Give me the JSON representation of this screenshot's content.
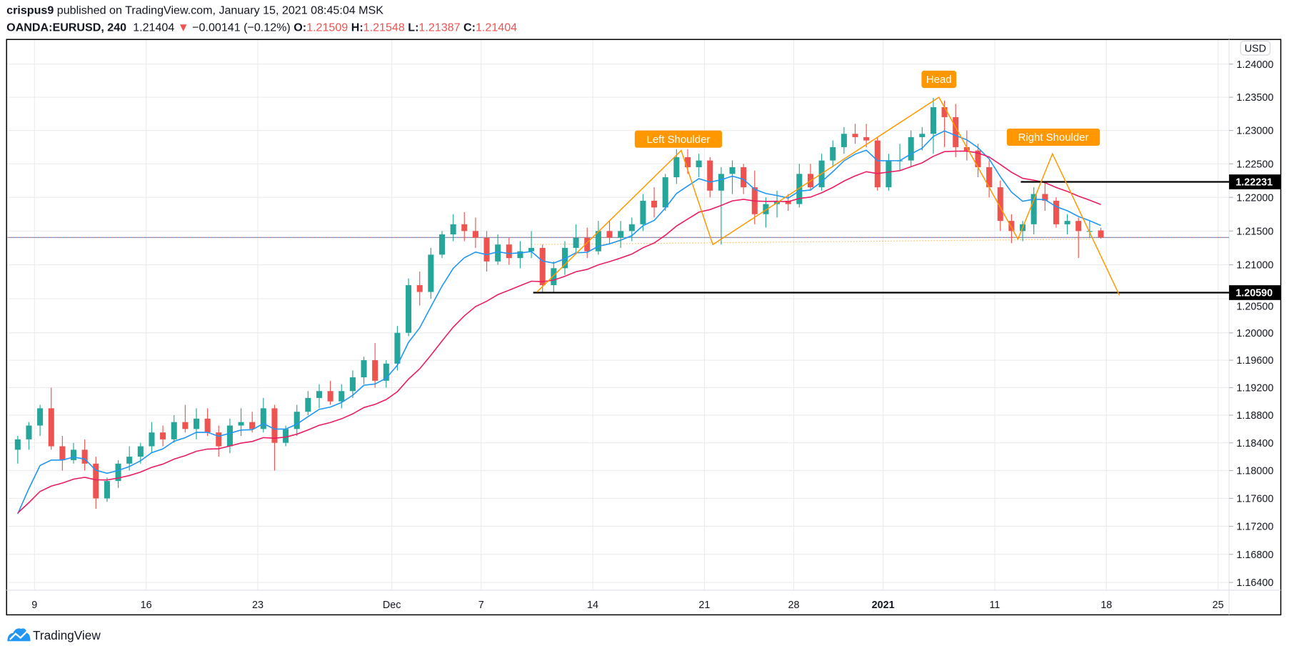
{
  "header": {
    "author": "crispus9",
    "published_text": " published on TradingView.com, January 15, 2021 08:45:04 MSK",
    "symbol": "OANDA:EURUSD, 240",
    "last": "1.21404",
    "direction_icon": "triangle-down-icon",
    "change": "−0.00141 (−0.12%)",
    "o_label": "O:",
    "o": "1.21509",
    "h_label": "H:",
    "h": "1.21548",
    "l_label": "L:",
    "l": "1.21387",
    "c_label": "C:",
    "c": "1.21404"
  },
  "footer": {
    "brand": "TradingView",
    "logo_icon": "tradingview-cloud-icon"
  },
  "colors": {
    "up": "#26a69a",
    "down": "#ef5350",
    "ma_fast": "#2196f3",
    "ma_slow": "#e91e63",
    "pattern": "#ff9800",
    "level": "#000000",
    "grid": "#ececec"
  },
  "chart_data": {
    "type": "candlestick",
    "currency": "USD",
    "log_scale": true,
    "grid": true,
    "ylim": [
      1.1625,
      1.2425
    ],
    "y_ticks": [
      "1.24000",
      "1.23500",
      "1.23000",
      "1.22500",
      "1.22000",
      "1.21500",
      "1.21000",
      "1.20500",
      "1.20000",
      "1.19600",
      "1.19200",
      "1.18800",
      "1.18400",
      "1.18000",
      "1.17600",
      "1.17200",
      "1.16800",
      "1.16400"
    ],
    "x_ticks": [
      {
        "date": "2020-11-09",
        "label": "9"
      },
      {
        "date": "2020-11-16",
        "label": "16"
      },
      {
        "date": "2020-11-23",
        "label": "23"
      },
      {
        "date": "2020-12-01",
        "label": "Dec"
      },
      {
        "date": "2020-12-07",
        "label": "7"
      },
      {
        "date": "2020-12-14",
        "label": "14"
      },
      {
        "date": "2020-12-21",
        "label": "21"
      },
      {
        "date": "2020-12-28",
        "label": "28"
      },
      {
        "date": "2021-01-04",
        "label": "2021",
        "bold": true
      },
      {
        "date": "2021-01-11",
        "label": "11"
      },
      {
        "date": "2021-01-18",
        "label": "18"
      },
      {
        "date": "2021-01-25",
        "label": "25"
      }
    ],
    "non_trading_days": [
      "2020-12-25",
      "2021-01-01"
    ],
    "current_price": 1.21404,
    "candles": [
      {
        "date": "2020-11-06",
        "bars": [
          [
            1.183,
            1.185,
            1.181,
            1.1845
          ],
          [
            1.1845,
            1.187,
            1.183,
            1.1865
          ]
        ]
      },
      {
        "date": "2020-11-09",
        "bars": [
          [
            1.1865,
            1.1895,
            1.185,
            1.189
          ],
          [
            1.189,
            1.192,
            1.183,
            1.1835
          ]
        ]
      },
      {
        "date": "2020-11-10",
        "bars": [
          [
            1.1835,
            1.185,
            1.18,
            1.1815
          ],
          [
            1.1815,
            1.184,
            1.181,
            1.183
          ]
        ]
      },
      {
        "date": "2020-11-11",
        "bars": [
          [
            1.183,
            1.1845,
            1.18,
            1.181
          ],
          [
            1.181,
            1.182,
            1.1745,
            1.176
          ]
        ]
      },
      {
        "date": "2020-11-12",
        "bars": [
          [
            1.176,
            1.179,
            1.1755,
            1.1785
          ],
          [
            1.1785,
            1.1815,
            1.1775,
            1.181
          ]
        ]
      },
      {
        "date": "2020-11-13",
        "bars": [
          [
            1.181,
            1.1835,
            1.18,
            1.182
          ],
          [
            1.182,
            1.184,
            1.181,
            1.1835
          ]
        ]
      },
      {
        "date": "2020-11-16",
        "bars": [
          [
            1.1835,
            1.187,
            1.1825,
            1.1855
          ],
          [
            1.1855,
            1.1865,
            1.1835,
            1.1845
          ]
        ]
      },
      {
        "date": "2020-11-17",
        "bars": [
          [
            1.1845,
            1.188,
            1.184,
            1.187
          ],
          [
            1.187,
            1.1895,
            1.1855,
            1.186
          ]
        ]
      },
      {
        "date": "2020-11-18",
        "bars": [
          [
            1.186,
            1.189,
            1.1845,
            1.1875
          ],
          [
            1.1875,
            1.189,
            1.185,
            1.1855
          ]
        ]
      },
      {
        "date": "2020-11-19",
        "bars": [
          [
            1.1855,
            1.1865,
            1.182,
            1.1835
          ],
          [
            1.1835,
            1.1875,
            1.1825,
            1.1865
          ]
        ]
      },
      {
        "date": "2020-11-20",
        "bars": [
          [
            1.1865,
            1.189,
            1.185,
            1.187
          ],
          [
            1.187,
            1.1885,
            1.1855,
            1.186
          ]
        ]
      },
      {
        "date": "2020-11-23",
        "bars": [
          [
            1.186,
            1.1905,
            1.1855,
            1.189
          ],
          [
            1.189,
            1.1895,
            1.18,
            1.184
          ]
        ]
      },
      {
        "date": "2020-11-24",
        "bars": [
          [
            1.184,
            1.1865,
            1.1835,
            1.186
          ],
          [
            1.186,
            1.1895,
            1.185,
            1.1885
          ]
        ]
      },
      {
        "date": "2020-11-25",
        "bars": [
          [
            1.1885,
            1.1915,
            1.188,
            1.1905
          ],
          [
            1.1905,
            1.1925,
            1.189,
            1.1915
          ]
        ]
      },
      {
        "date": "2020-11-26",
        "bars": [
          [
            1.1915,
            1.193,
            1.1895,
            1.19
          ],
          [
            1.19,
            1.1925,
            1.189,
            1.1915
          ]
        ]
      },
      {
        "date": "2020-11-27",
        "bars": [
          [
            1.1915,
            1.1945,
            1.1905,
            1.1935
          ],
          [
            1.1935,
            1.1965,
            1.1925,
            1.196
          ]
        ]
      },
      {
        "date": "2020-11-30",
        "bars": [
          [
            1.196,
            1.1985,
            1.192,
            1.193
          ],
          [
            1.193,
            1.196,
            1.192,
            1.1955
          ]
        ]
      },
      {
        "date": "2020-12-01",
        "bars": [
          [
            1.1955,
            1.201,
            1.1945,
            1.2
          ],
          [
            1.2,
            1.208,
            1.1995,
            1.207
          ]
        ]
      },
      {
        "date": "2020-12-02",
        "bars": [
          [
            1.207,
            1.209,
            1.204,
            1.206
          ],
          [
            1.206,
            1.2125,
            1.205,
            1.2115
          ]
        ]
      },
      {
        "date": "2020-12-03",
        "bars": [
          [
            1.2115,
            1.215,
            1.211,
            1.2145
          ],
          [
            1.2145,
            1.2175,
            1.2135,
            1.216
          ]
        ]
      },
      {
        "date": "2020-12-04",
        "bars": [
          [
            1.216,
            1.2178,
            1.2135,
            1.215
          ],
          [
            1.215,
            1.217,
            1.2125,
            1.214
          ]
        ]
      },
      {
        "date": "2020-12-07",
        "bars": [
          [
            1.214,
            1.215,
            1.209,
            1.2105
          ],
          [
            1.2105,
            1.2145,
            1.21,
            1.213
          ]
        ]
      },
      {
        "date": "2020-12-08",
        "bars": [
          [
            1.213,
            1.214,
            1.21,
            1.211
          ],
          [
            1.211,
            1.2135,
            1.2095,
            1.212
          ]
        ]
      },
      {
        "date": "2020-12-09",
        "bars": [
          [
            1.212,
            1.215,
            1.211,
            1.2125
          ],
          [
            1.2125,
            1.213,
            1.2058,
            1.207
          ]
        ]
      },
      {
        "date": "2020-12-10",
        "bars": [
          [
            1.207,
            1.2105,
            1.206,
            1.2095
          ],
          [
            1.2095,
            1.2135,
            1.2085,
            1.2125
          ]
        ]
      },
      {
        "date": "2020-12-11",
        "bars": [
          [
            1.2125,
            1.216,
            1.2115,
            1.214
          ],
          [
            1.214,
            1.2155,
            1.211,
            1.212
          ]
        ]
      },
      {
        "date": "2020-12-14",
        "bars": [
          [
            1.212,
            1.2165,
            1.2115,
            1.215
          ],
          [
            1.215,
            1.2165,
            1.213,
            1.214
          ]
        ]
      },
      {
        "date": "2020-12-15",
        "bars": [
          [
            1.214,
            1.2165,
            1.2125,
            1.215
          ],
          [
            1.215,
            1.217,
            1.2135,
            1.216
          ]
        ]
      },
      {
        "date": "2020-12-16",
        "bars": [
          [
            1.216,
            1.2205,
            1.215,
            1.2195
          ],
          [
            1.2195,
            1.2215,
            1.217,
            1.2185
          ]
        ]
      },
      {
        "date": "2020-12-17",
        "bars": [
          [
            1.2185,
            1.2235,
            1.218,
            1.223
          ],
          [
            1.223,
            1.2272,
            1.222,
            1.226
          ]
        ]
      },
      {
        "date": "2020-12-18",
        "bars": [
          [
            1.226,
            1.2272,
            1.2235,
            1.2245
          ],
          [
            1.2245,
            1.2265,
            1.223,
            1.2255
          ]
        ]
      },
      {
        "date": "2020-12-21",
        "bars": [
          [
            1.2255,
            1.226,
            1.22,
            1.221
          ],
          [
            1.221,
            1.2245,
            1.213,
            1.2235
          ]
        ]
      },
      {
        "date": "2020-12-22",
        "bars": [
          [
            1.2235,
            1.2255,
            1.2205,
            1.2245
          ],
          [
            1.2245,
            1.225,
            1.2205,
            1.2215
          ]
        ]
      },
      {
        "date": "2020-12-23",
        "bars": [
          [
            1.2215,
            1.224,
            1.216,
            1.2175
          ],
          [
            1.2175,
            1.22,
            1.2155,
            1.219
          ]
        ]
      },
      {
        "date": "2020-12-24",
        "bars": [
          [
            1.219,
            1.221,
            1.217,
            1.2195
          ],
          [
            1.2195,
            1.2205,
            1.218,
            1.219
          ]
        ]
      },
      {
        "date": "2020-12-28",
        "bars": [
          [
            1.219,
            1.225,
            1.2185,
            1.2235
          ],
          [
            1.2235,
            1.225,
            1.221,
            1.2215
          ]
        ]
      },
      {
        "date": "2020-12-29",
        "bars": [
          [
            1.2215,
            1.2265,
            1.221,
            1.2255
          ],
          [
            1.2255,
            1.2285,
            1.2245,
            1.2275
          ]
        ]
      },
      {
        "date": "2020-12-30",
        "bars": [
          [
            1.2275,
            1.2305,
            1.2265,
            1.2295
          ],
          [
            1.2295,
            1.231,
            1.228,
            1.229
          ]
        ]
      },
      {
        "date": "2020-12-31",
        "bars": [
          [
            1.229,
            1.231,
            1.2275,
            1.2285
          ],
          [
            1.2285,
            1.229,
            1.221,
            1.2215
          ]
        ]
      },
      {
        "date": "2021-01-04",
        "bars": [
          [
            1.2215,
            1.2265,
            1.221,
            1.2255
          ],
          [
            1.2255,
            1.228,
            1.224,
            1.2255
          ]
        ]
      },
      {
        "date": "2021-01-05",
        "bars": [
          [
            1.2255,
            1.23,
            1.2245,
            1.229
          ],
          [
            1.229,
            1.2305,
            1.227,
            1.2295
          ]
        ]
      },
      {
        "date": "2021-01-06",
        "bars": [
          [
            1.2295,
            1.2349,
            1.2265,
            1.2335
          ],
          [
            1.2335,
            1.2345,
            1.2275,
            1.232
          ]
        ]
      },
      {
        "date": "2021-01-07",
        "bars": [
          [
            1.232,
            1.234,
            1.226,
            1.2275
          ],
          [
            1.2275,
            1.23,
            1.2255,
            1.227
          ]
        ]
      },
      {
        "date": "2021-01-08",
        "bars": [
          [
            1.227,
            1.228,
            1.223,
            1.2245
          ],
          [
            1.2245,
            1.2255,
            1.22,
            1.2215
          ]
        ]
      },
      {
        "date": "2021-01-11",
        "bars": [
          [
            1.2215,
            1.2225,
            1.215,
            1.2165
          ],
          [
            1.2165,
            1.2175,
            1.2132,
            1.215
          ]
        ]
      },
      {
        "date": "2021-01-12",
        "bars": [
          [
            1.215,
            1.2165,
            1.2135,
            1.216
          ],
          [
            1.216,
            1.2215,
            1.2145,
            1.2205
          ]
        ]
      },
      {
        "date": "2021-01-13",
        "bars": [
          [
            1.2205,
            1.2222,
            1.218,
            1.2195
          ],
          [
            1.2195,
            1.22,
            1.2155,
            1.216
          ]
        ]
      },
      {
        "date": "2021-01-14",
        "bars": [
          [
            1.216,
            1.2175,
            1.2145,
            1.2165
          ],
          [
            1.2165,
            1.217,
            1.211,
            1.215
          ]
        ]
      },
      {
        "date": "2021-01-15",
        "bars": [
          [
            1.215,
            1.2165,
            1.214,
            1.215
          ],
          [
            1.21509,
            1.21548,
            1.21387,
            1.21404
          ]
        ]
      }
    ],
    "moving_averages": [
      {
        "color_key": "ma_fast"
      },
      {
        "color_key": "ma_slow"
      }
    ],
    "levels": [
      {
        "price": 1.22231,
        "label": "1.22231",
        "from": "2021-01-12T04:00"
      },
      {
        "price": 1.2059,
        "label": "1.20590",
        "from": "2020-12-09T08:00"
      }
    ],
    "pattern_path": [
      {
        "t": "2020-12-09T12:00",
        "p": 1.206
      },
      {
        "t": "2020-12-17T23:00",
        "p": 1.227
      },
      {
        "t": "2020-12-21T09:00",
        "p": 1.213
      },
      {
        "t": "2021-01-06T12:00",
        "p": 1.235
      },
      {
        "t": "2021-01-12T01:00",
        "p": 1.2138
      },
      {
        "t": "2021-01-13T14:00",
        "p": 1.2265
      },
      {
        "t": "2021-01-18T14:00",
        "p": 1.2055
      }
    ],
    "neckline": [
      {
        "t": "2020-12-09T06:00",
        "p": 1.213
      },
      {
        "t": "2021-01-15T06:00",
        "p": 1.2138
      }
    ],
    "annotations": [
      {
        "text": "Left Shoulder",
        "t": "2020-12-17T20:00",
        "p": 1.2287
      },
      {
        "text": "Head",
        "t": "2021-01-06T12:00",
        "p": 1.2377
      },
      {
        "text": "Right Shoulder",
        "t": "2021-01-13T15:00",
        "p": 1.229
      }
    ]
  }
}
